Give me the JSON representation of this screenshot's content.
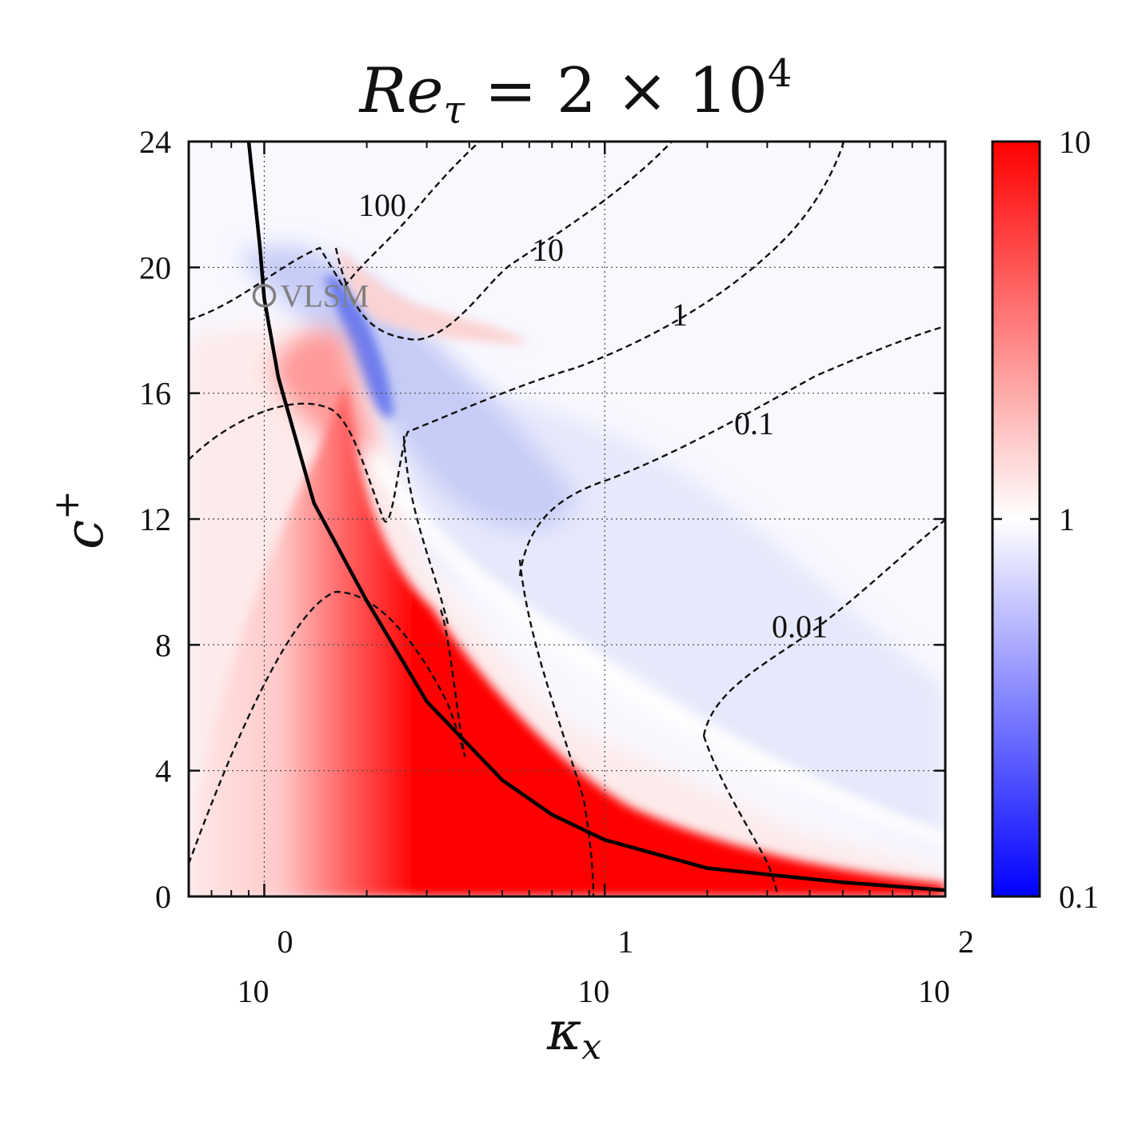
{
  "chart_data": {
    "type": "heatmap",
    "title": "Re_τ = 2 × 10^4",
    "title_parts": {
      "base": "Re",
      "sub": "τ",
      "rest": " = 2 × 10",
      "exp": "4"
    },
    "xlabel": "κ_x",
    "xlabel_parts": {
      "base": "κ",
      "sub": "x"
    },
    "ylabel": "c^+",
    "ylabel_parts": {
      "base": "c",
      "sup": "+"
    },
    "x_scale": "log",
    "xlim": [
      0.6,
      100
    ],
    "ylim": [
      0,
      24
    ],
    "x_ticks": [
      {
        "value": 1,
        "base": "10",
        "exp": "0"
      },
      {
        "value": 10,
        "base": "10",
        "exp": "1"
      },
      {
        "value": 100,
        "base": "10",
        "exp": "2"
      }
    ],
    "y_ticks": [
      "0",
      "4",
      "8",
      "12",
      "16",
      "20",
      "24"
    ],
    "grid": true,
    "colorbar": {
      "scale": "log",
      "range": [
        0.1,
        10
      ],
      "tick_labels": [
        "10",
        "1",
        "0.1"
      ],
      "colors": {
        "low": "#0000ff",
        "mid": "#ffffff",
        "high": "#ff0000"
      }
    },
    "contour_levels": [
      "100",
      "10",
      "1",
      "0.1",
      "0.01"
    ],
    "contour_style": "dashed",
    "solid_curve": {
      "style": "solid",
      "points": [
        [
          0.9,
          24
        ],
        [
          0.97,
          20.7
        ],
        [
          1.0,
          19.0
        ],
        [
          1.1,
          16.5
        ],
        [
          1.4,
          12.5
        ],
        [
          2.0,
          9.4
        ],
        [
          3.0,
          6.2
        ],
        [
          5.0,
          3.7
        ],
        [
          7.0,
          2.6
        ],
        [
          10.0,
          1.8
        ],
        [
          20.0,
          0.9
        ],
        [
          50.0,
          0.45
        ],
        [
          100.0,
          0.2
        ]
      ]
    },
    "marker": {
      "label": "VLSM",
      "x": 1.0,
      "y": 19.1,
      "color": "#808080"
    }
  }
}
